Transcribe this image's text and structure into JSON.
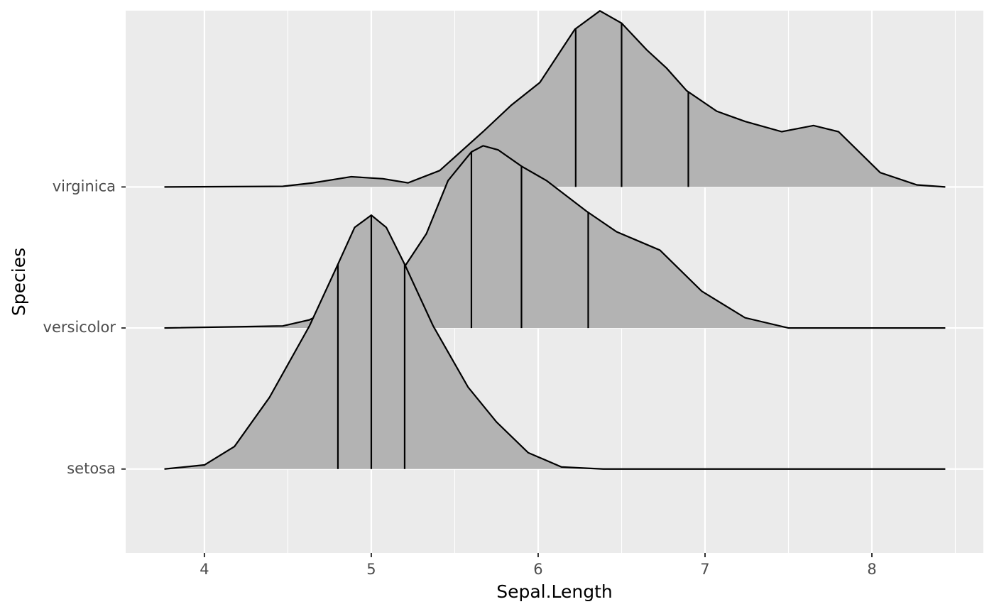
{
  "chart_data": {
    "type": "ridgeline",
    "xlabel": "Sepal.Length",
    "ylabel": "Species",
    "categories": [
      "setosa",
      "versicolor",
      "virginica"
    ],
    "xlim": [
      3.528,
      8.668
    ],
    "xticks": [
      4,
      5,
      6,
      7,
      8
    ],
    "xminor": [
      4.5,
      5.5,
      6.5,
      7.5,
      8.5
    ],
    "ylim": [
      0.405,
      4.25
    ],
    "scale": 1.8,
    "grid": true,
    "fill": "#b3b3b3",
    "line_color": "#000000",
    "series": [
      {
        "name": "setosa",
        "x": [
          3.76,
          4.0,
          4.18,
          4.39,
          4.63,
          4.8,
          4.9,
          5.0,
          5.09,
          5.2,
          5.37,
          5.58,
          5.75,
          5.94,
          6.14,
          6.39,
          8.44
        ],
        "density": [
          0,
          0.02,
          0.11,
          0.35,
          0.7,
          1.0,
          1.18,
          1.24,
          1.18,
          1.0,
          0.7,
          0.4,
          0.23,
          0.08,
          0.01,
          0,
          0
        ],
        "quantiles": [
          4.8,
          5.0,
          5.2
        ]
      },
      {
        "name": "versicolor",
        "x": [
          3.76,
          4.47,
          4.63,
          4.9,
          5.2,
          5.33,
          5.46,
          5.6,
          5.67,
          5.76,
          5.9,
          6.05,
          6.29,
          6.47,
          6.73,
          6.98,
          7.24,
          7.5,
          8.44
        ],
        "density": [
          0,
          0.01,
          0.04,
          0.15,
          0.3,
          0.46,
          0.72,
          0.86,
          0.89,
          0.87,
          0.79,
          0.72,
          0.57,
          0.47,
          0.38,
          0.18,
          0.05,
          0,
          0
        ],
        "quantiles": [
          5.6,
          5.9,
          6.3
        ]
      },
      {
        "name": "virginica",
        "x": [
          3.76,
          4.47,
          4.65,
          4.88,
          5.07,
          5.22,
          5.41,
          5.67,
          5.84,
          6.01,
          6.22,
          6.37,
          6.5,
          6.65,
          6.77,
          6.89,
          7.07,
          7.24,
          7.46,
          7.65,
          7.8,
          8.05,
          8.27,
          8.44
        ],
        "density": [
          0,
          0.003,
          0.02,
          0.05,
          0.04,
          0.02,
          0.08,
          0.27,
          0.4,
          0.51,
          0.77,
          0.86,
          0.8,
          0.67,
          0.58,
          0.47,
          0.37,
          0.32,
          0.27,
          0.3,
          0.27,
          0.07,
          0.01,
          0
        ],
        "quantiles": [
          6.225,
          6.5,
          6.9
        ]
      }
    ]
  }
}
